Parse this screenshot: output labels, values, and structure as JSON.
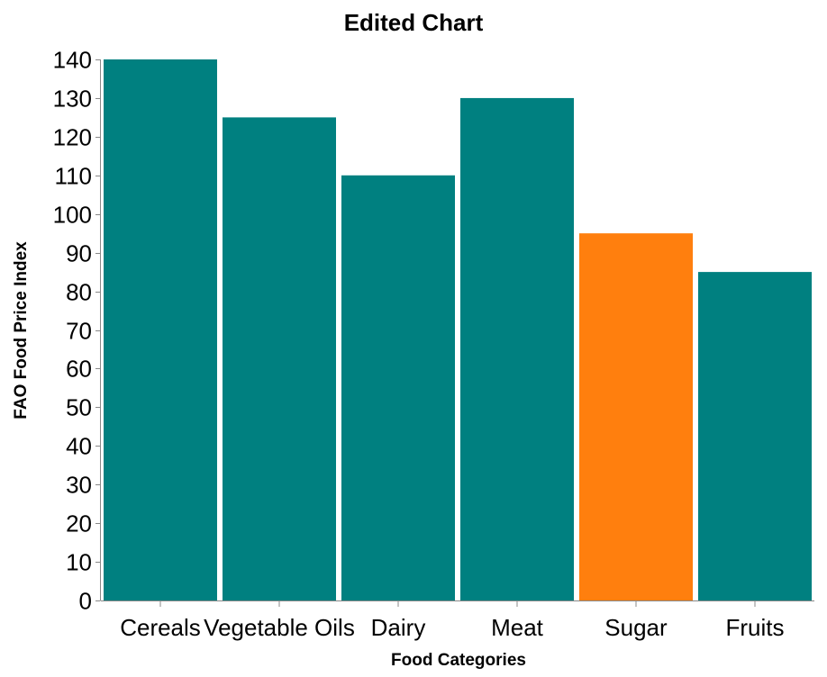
{
  "chart_data": {
    "type": "bar",
    "title": "Edited Chart",
    "xlabel": "Food Categories",
    "ylabel": "FAO Food Price Index",
    "categories": [
      "Cereals",
      "Vegetable Oils",
      "Dairy",
      "Meat",
      "Sugar",
      "Fruits"
    ],
    "values": [
      140,
      125,
      110,
      130,
      95,
      85
    ],
    "ylim": [
      0,
      140
    ],
    "yticks": [
      0,
      10,
      20,
      30,
      40,
      50,
      60,
      70,
      80,
      90,
      100,
      110,
      120,
      130,
      140
    ],
    "colors": [
      "#008080",
      "#008080",
      "#008080",
      "#008080",
      "#ff7f0e",
      "#008080"
    ],
    "highlighted_category": "Sugar",
    "grid": false,
    "legend": "none"
  }
}
